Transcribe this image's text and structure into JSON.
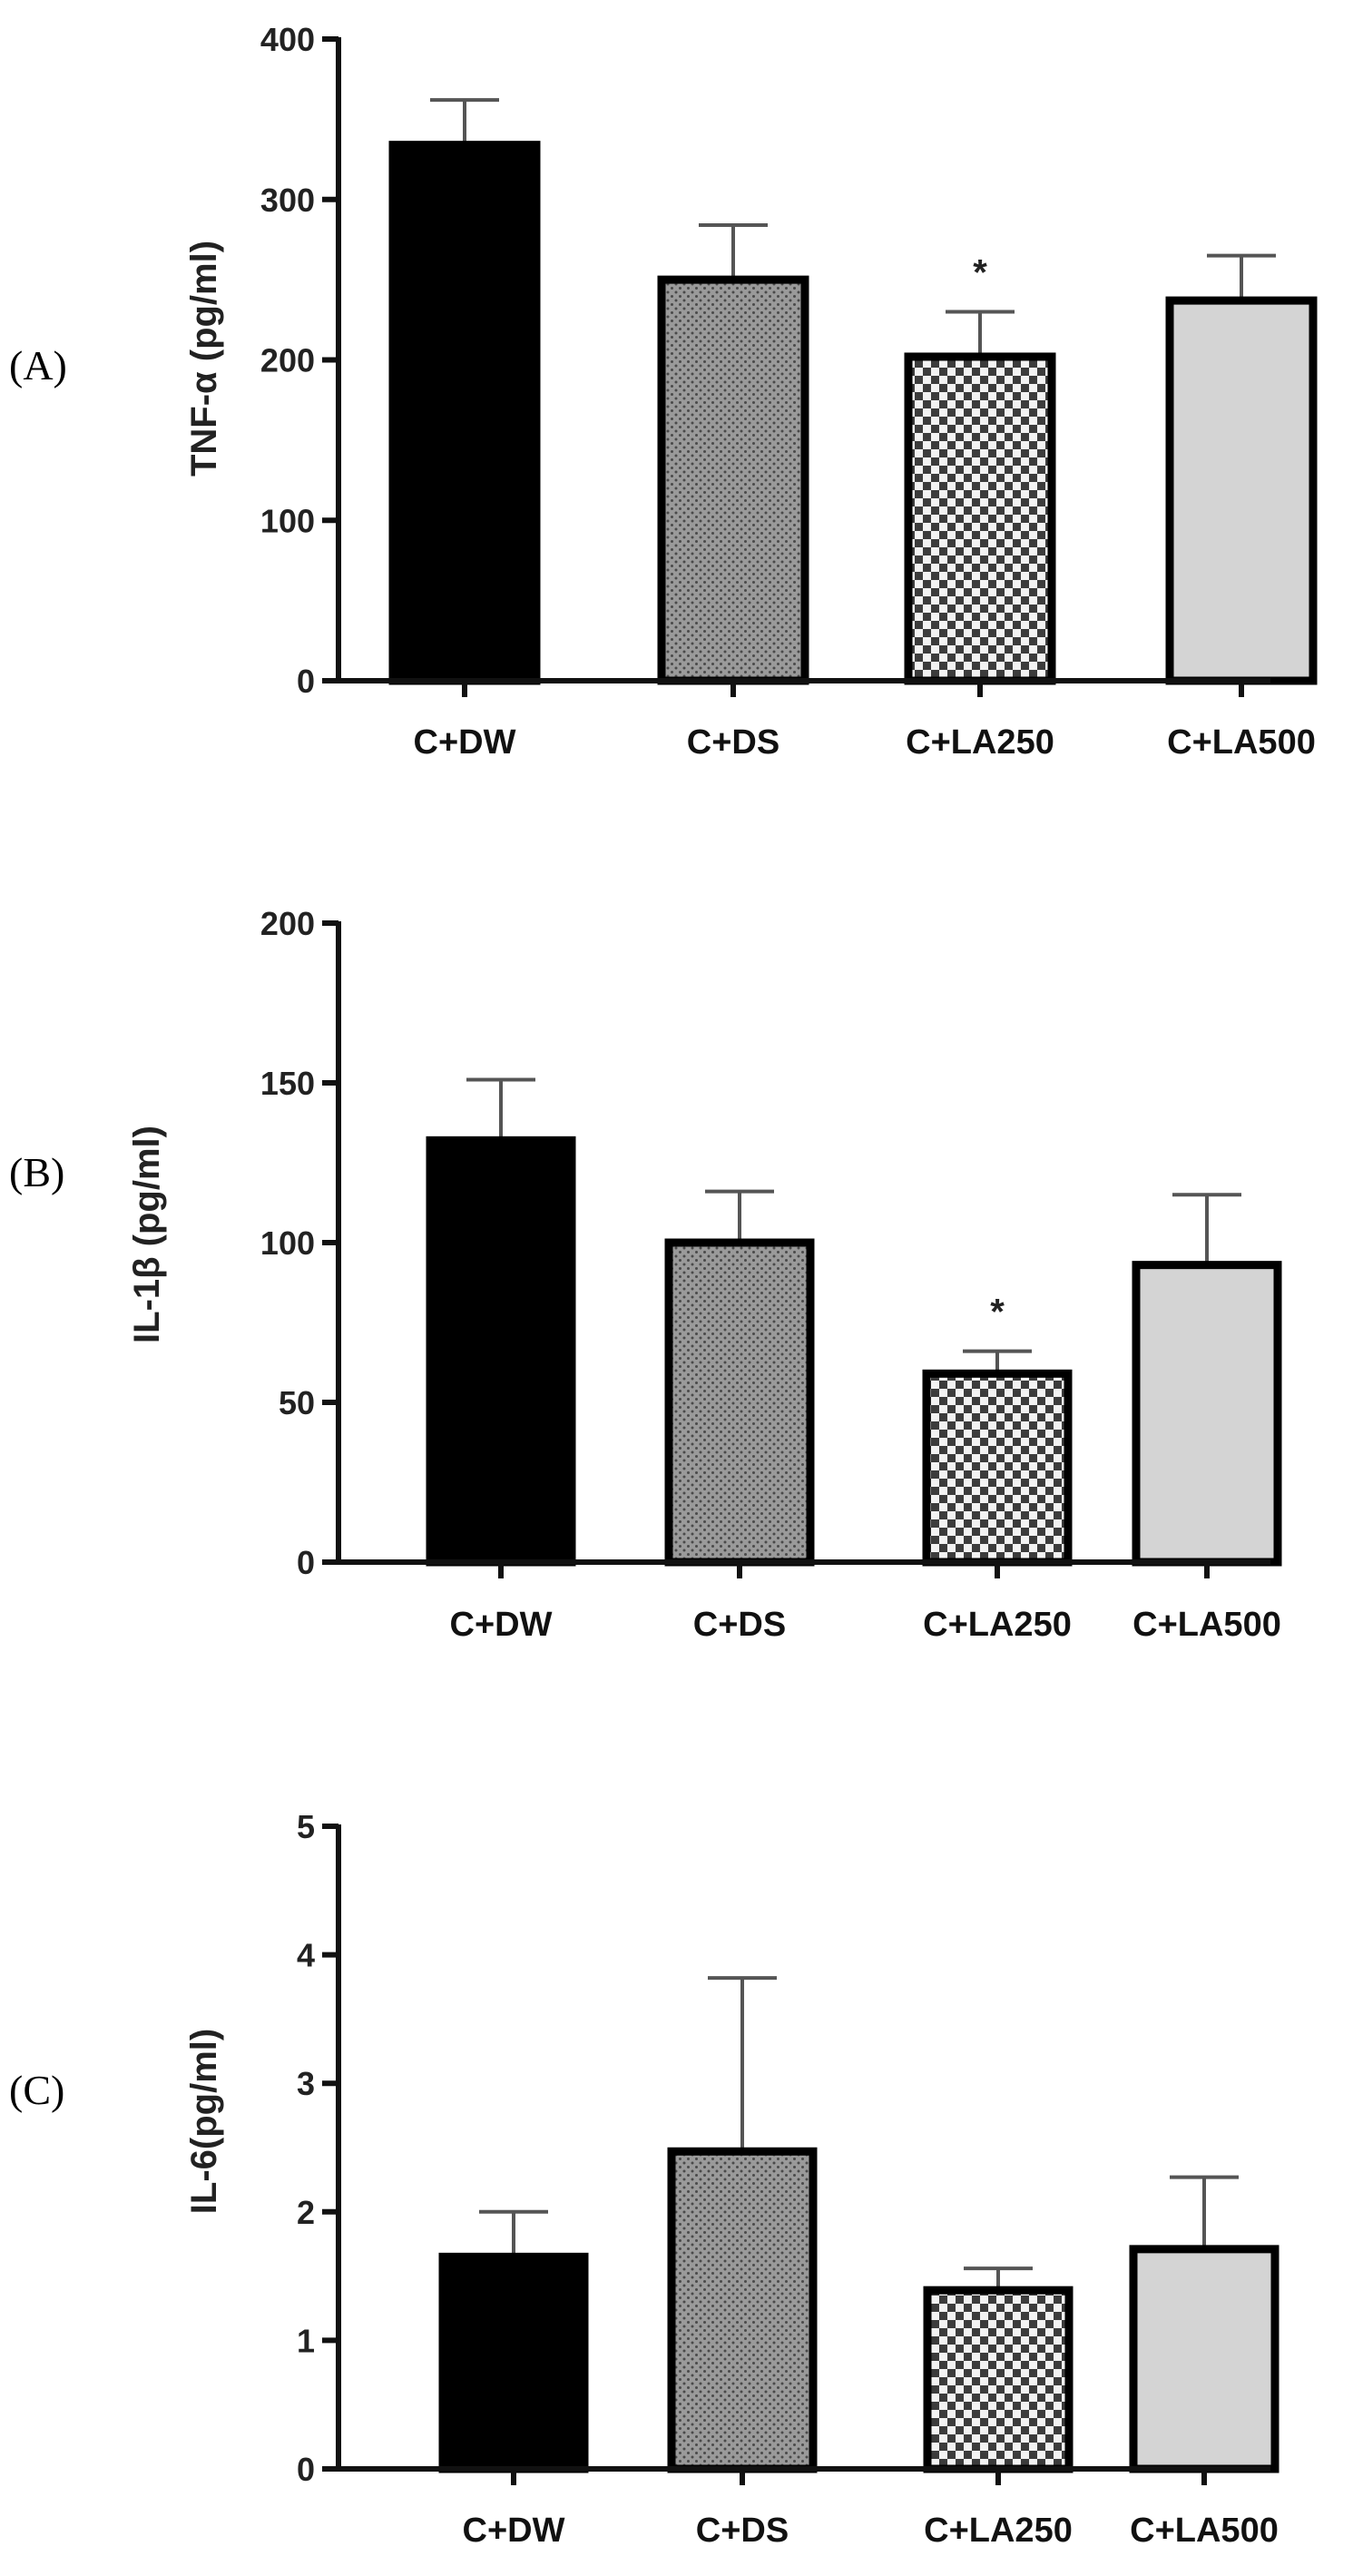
{
  "chart_data": [
    {
      "type": "bar",
      "panel_label": "(A)",
      "ylabel": "TNF-α (pg/ml)",
      "categories": [
        "C+DW",
        "C+DS",
        "C+LA250",
        "C+LA500"
      ],
      "values": [
        334,
        250,
        202,
        237
      ],
      "error": [
        28,
        34,
        28,
        28
      ],
      "significance": [
        "",
        "",
        "*",
        ""
      ],
      "patterns": [
        "solid-black",
        "dense-dots",
        "checker",
        "solid-light"
      ],
      "ylim": [
        0,
        400
      ],
      "yticks": [
        0,
        100,
        200,
        300,
        400
      ],
      "ytick_labels": [
        "0",
        "100",
        "200",
        "300",
        "400"
      ]
    },
    {
      "type": "bar",
      "panel_label": "(B)",
      "ylabel": "IL-1β (pg/ml)",
      "categories": [
        "C+DW",
        "C+DS",
        "C+LA250",
        "C+LA500"
      ],
      "values": [
        132,
        100,
        59,
        93
      ],
      "error": [
        19,
        16,
        7,
        22
      ],
      "significance": [
        "",
        "",
        "*",
        ""
      ],
      "patterns": [
        "solid-black",
        "dense-dots",
        "checker",
        "solid-light"
      ],
      "ylim": [
        0,
        200
      ],
      "yticks": [
        0,
        50,
        100,
        150,
        200
      ],
      "ytick_labels": [
        "0",
        "50",
        "100",
        "150",
        "200"
      ]
    },
    {
      "type": "bar",
      "panel_label": "(C)",
      "ylabel": "IL-6(pg/ml)",
      "categories": [
        "C+DW",
        "C+DS",
        "C+LA250",
        "C+LA500"
      ],
      "values": [
        1.65,
        2.47,
        1.39,
        1.71
      ],
      "error": [
        0.35,
        1.35,
        0.17,
        0.56
      ],
      "significance": [
        "",
        "",
        "",
        ""
      ],
      "patterns": [
        "solid-black",
        "dense-dots",
        "checker",
        "solid-light"
      ],
      "ylim": [
        0,
        5
      ],
      "yticks": [
        0,
        1,
        2,
        3,
        4,
        5
      ],
      "ytick_labels": [
        "0",
        "1",
        "2",
        "3",
        "4",
        "5"
      ]
    }
  ],
  "colors": {
    "axis": "#111111",
    "error_bar": "#555555",
    "bar_outline": "#000000",
    "solid_black": "#000000",
    "dots_bg": "#9a9a9a",
    "dots_fg": "#4a4a4a",
    "checker_a": "#3c3c3c",
    "checker_b": "#f2f2f2",
    "light_fill": "#d4d4d4"
  }
}
